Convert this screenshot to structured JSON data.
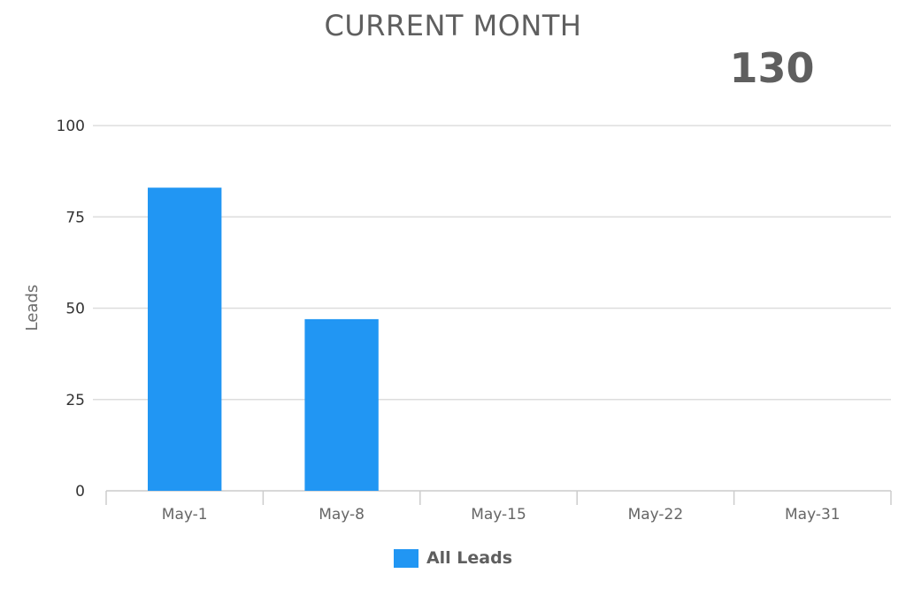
{
  "chart_data": {
    "type": "bar",
    "title": "CURRENT MONTH",
    "total_label": "130",
    "xlabel": "",
    "ylabel": "Leads",
    "ylim": [
      0,
      100
    ],
    "yticks": [
      0,
      25,
      50,
      75,
      100
    ],
    "grid": true,
    "legend_position": "bottom",
    "categories": [
      "May-1",
      "May-8",
      "May-15",
      "May-22",
      "May-31"
    ],
    "series": [
      {
        "name": "All Leads",
        "color": "#2196f3",
        "values": [
          83,
          47,
          0,
          0,
          0
        ]
      }
    ]
  }
}
